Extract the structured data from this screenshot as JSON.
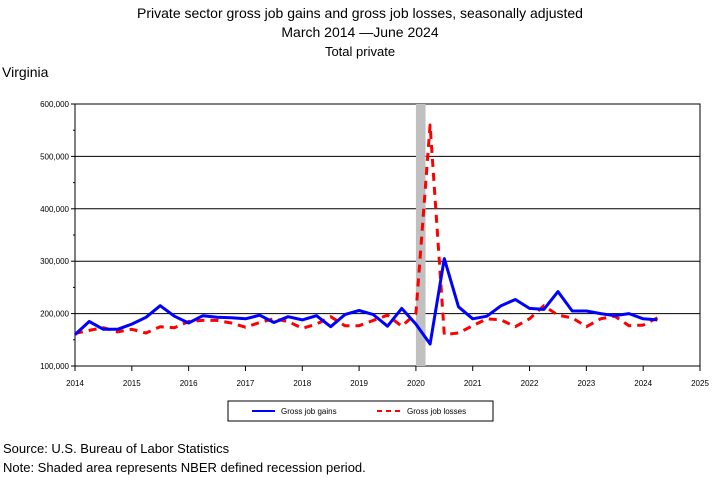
{
  "header": {
    "title": "Private sector gross job gains and gross job losses, seasonally adjusted",
    "period": "March 2014 —June 2024",
    "subtitle": "Total private",
    "region": "Virginia"
  },
  "footer": {
    "source": "Source: U.S. Bureau of Labor Statistics",
    "note": "Note: Shaded area represents NBER defined recession period."
  },
  "chart_data": {
    "type": "line",
    "title": "Private sector gross job gains and gross job losses, seasonally adjusted",
    "x_start_year": 2014,
    "x_step": 0.25,
    "x_ticks": [
      "2014",
      "2015",
      "2016",
      "2017",
      "2018",
      "2019",
      "2020",
      "2021",
      "2022",
      "2023",
      "2024",
      "2025"
    ],
    "xlim": [
      2014,
      2025
    ],
    "y_ticks": [
      "100,000",
      "200,000",
      "300,000",
      "400,000",
      "500,000",
      "600,000"
    ],
    "ylim": [
      100000,
      600000
    ],
    "grid": true,
    "recession": {
      "start": 2020.0,
      "end": 2020.17,
      "color": "#c0c0c0"
    },
    "series": [
      {
        "name": "Gross job gains",
        "color": "#0000ff",
        "style": "solid",
        "values": [
          160000,
          185000,
          170000,
          170000,
          180000,
          193000,
          215000,
          195000,
          182000,
          196000,
          193000,
          192000,
          190000,
          197000,
          183000,
          194000,
          188000,
          196000,
          175000,
          198000,
          206000,
          198000,
          176000,
          210000,
          180000,
          142000,
          305000,
          213000,
          190000,
          195000,
          215000,
          227000,
          210000,
          208000,
          242000,
          205000,
          205000,
          200000,
          196000,
          200000,
          190000,
          188000
        ]
      },
      {
        "name": "Gross job losses",
        "color": "#ff0000",
        "style": "dashed",
        "values": [
          162000,
          168000,
          173000,
          165000,
          170000,
          163000,
          175000,
          173000,
          185000,
          187000,
          187000,
          182000,
          174000,
          183000,
          190000,
          185000,
          172000,
          180000,
          194000,
          177000,
          177000,
          187000,
          197000,
          176000,
          200000,
          560000,
          160000,
          163000,
          177000,
          190000,
          188000,
          175000,
          190000,
          215000,
          197000,
          192000,
          175000,
          190000,
          195000,
          177000,
          178000,
          192000
        ]
      }
    ]
  }
}
